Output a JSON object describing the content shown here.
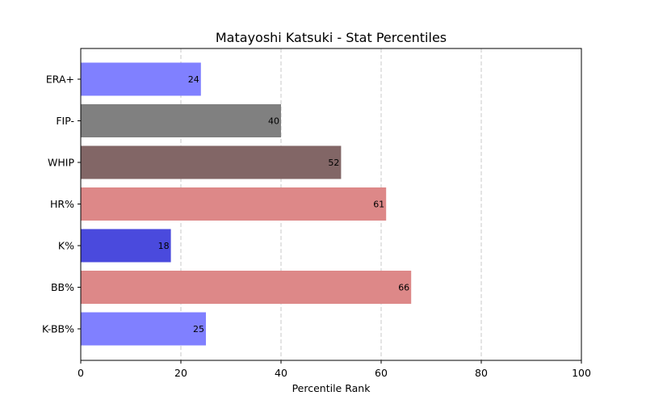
{
  "chart_data": {
    "type": "bar",
    "orientation": "horizontal",
    "title": "Matayoshi Katsuki - Stat Percentiles",
    "xlabel": "Percentile Rank",
    "ylabel": "",
    "xlim": [
      0,
      100
    ],
    "xticks": [
      0,
      20,
      40,
      60,
      80,
      100
    ],
    "grid": "x-dashed",
    "categories": [
      "ERA+",
      "FIP-",
      "WHIP",
      "HR%",
      "K%",
      "BB%",
      "K-BB%"
    ],
    "values": [
      24,
      40,
      52,
      61,
      18,
      66,
      25
    ],
    "colors": [
      "#8080ff",
      "#808080",
      "#826666",
      "#dd8888",
      "#4a4add",
      "#dd8888",
      "#8080ff"
    ]
  }
}
